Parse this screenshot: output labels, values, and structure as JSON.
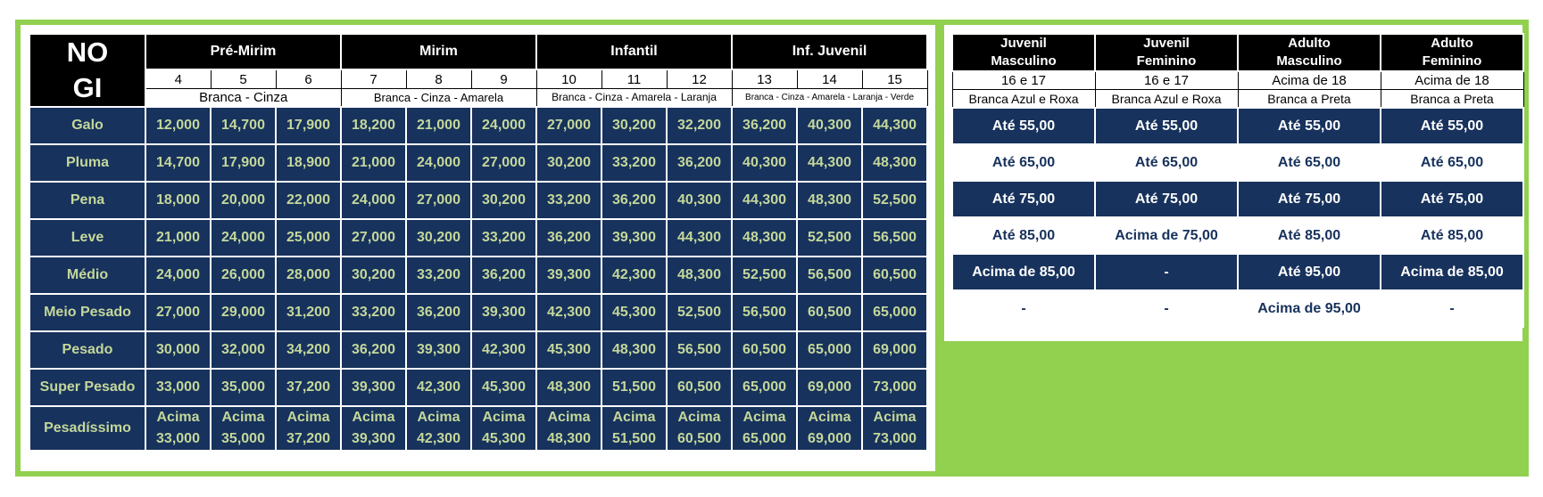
{
  "left_table": {
    "corner": "NO GI",
    "groups": [
      {
        "label": "Pré-Mirim",
        "ages": [
          "4",
          "5",
          "6"
        ],
        "belts": "Branca - Cinza"
      },
      {
        "label": "Mirim",
        "ages": [
          "7",
          "8",
          "9"
        ],
        "belts": "Branca - Cinza - Amarela"
      },
      {
        "label": "Infantil",
        "ages": [
          "10",
          "11",
          "12"
        ],
        "belts": "Branca - Cinza - Amarela - Laranja"
      },
      {
        "label": "Inf. Juvenil",
        "ages": [
          "13",
          "14",
          "15"
        ],
        "belts": "Branca - Cinza - Amarela - Laranja - Verde"
      }
    ],
    "rows": [
      {
        "label": "Galo",
        "values": [
          "12,000",
          "14,700",
          "17,900",
          "18,200",
          "21,000",
          "24,000",
          "27,000",
          "30,200",
          "32,200",
          "36,200",
          "40,300",
          "44,300"
        ]
      },
      {
        "label": "Pluma",
        "values": [
          "14,700",
          "17,900",
          "18,900",
          "21,000",
          "24,000",
          "27,000",
          "30,200",
          "33,200",
          "36,200",
          "40,300",
          "44,300",
          "48,300"
        ]
      },
      {
        "label": "Pena",
        "values": [
          "18,000",
          "20,000",
          "22,000",
          "24,000",
          "27,000",
          "30,200",
          "33,200",
          "36,200",
          "40,300",
          "44,300",
          "48,300",
          "52,500"
        ]
      },
      {
        "label": "Leve",
        "values": [
          "21,000",
          "24,000",
          "25,000",
          "27,000",
          "30,200",
          "33,200",
          "36,200",
          "39,300",
          "44,300",
          "48,300",
          "52,500",
          "56,500"
        ]
      },
      {
        "label": "Médio",
        "values": [
          "24,000",
          "26,000",
          "28,000",
          "30,200",
          "33,200",
          "36,200",
          "39,300",
          "42,300",
          "48,300",
          "52,500",
          "56,500",
          "60,500"
        ]
      },
      {
        "label": "Meio Pesado",
        "values": [
          "27,000",
          "29,000",
          "31,200",
          "33,200",
          "36,200",
          "39,300",
          "42,300",
          "45,300",
          "52,500",
          "56,500",
          "60,500",
          "65,000"
        ]
      },
      {
        "label": "Pesado",
        "values": [
          "30,000",
          "32,000",
          "34,200",
          "36,200",
          "39,300",
          "42,300",
          "45,300",
          "48,300",
          "56,500",
          "60,500",
          "65,000",
          "69,000"
        ]
      },
      {
        "label": "Super Pesado",
        "values": [
          "33,000",
          "35,000",
          "37,200",
          "39,300",
          "42,300",
          "45,300",
          "48,300",
          "51,500",
          "60,500",
          "65,000",
          "69,000",
          "73,000"
        ]
      },
      {
        "label": "Pesadíssimo",
        "values": [
          "Acima\n33,000",
          "Acima\n35,000",
          "Acima\n37,200",
          "Acima\n39,300",
          "Acima\n42,300",
          "Acima\n45,300",
          "Acima\n48,300",
          "Acima\n51,500",
          "Acima\n60,500",
          "Acima\n65,000",
          "Acima\n69,000",
          "Acima\n73,000"
        ]
      }
    ]
  },
  "right_table": {
    "headers": [
      {
        "title": "Juvenil Masculino",
        "age": "16 e 17",
        "belts": "Branca Azul e Roxa"
      },
      {
        "title": "Juvenil Feminino",
        "age": "16 e 17",
        "belts": "Branca Azul e Roxa"
      },
      {
        "title": "Adulto Masculino",
        "age": "Acima de 18",
        "belts": "Branca a Preta"
      },
      {
        "title": "Adulto Feminino",
        "age": "Acima de 18",
        "belts": "Branca a Preta"
      }
    ],
    "rows": [
      [
        "Até 55,00",
        "Até 55,00",
        "Até 55,00",
        "Até 55,00"
      ],
      [
        "Até 65,00",
        "Até 65,00",
        "Até 65,00",
        "Até 65,00"
      ],
      [
        "Até 75,00",
        "Até 75,00",
        "Até 75,00",
        "Até 75,00"
      ],
      [
        "Até 85,00",
        "Acima de 75,00",
        "Até 85,00",
        "Até 85,00"
      ],
      [
        "Acima de 85,00",
        "-",
        "Até 95,00",
        "Acima de 85,00"
      ],
      [
        "-",
        "-",
        "Acima de 95,00",
        "-"
      ]
    ]
  }
}
